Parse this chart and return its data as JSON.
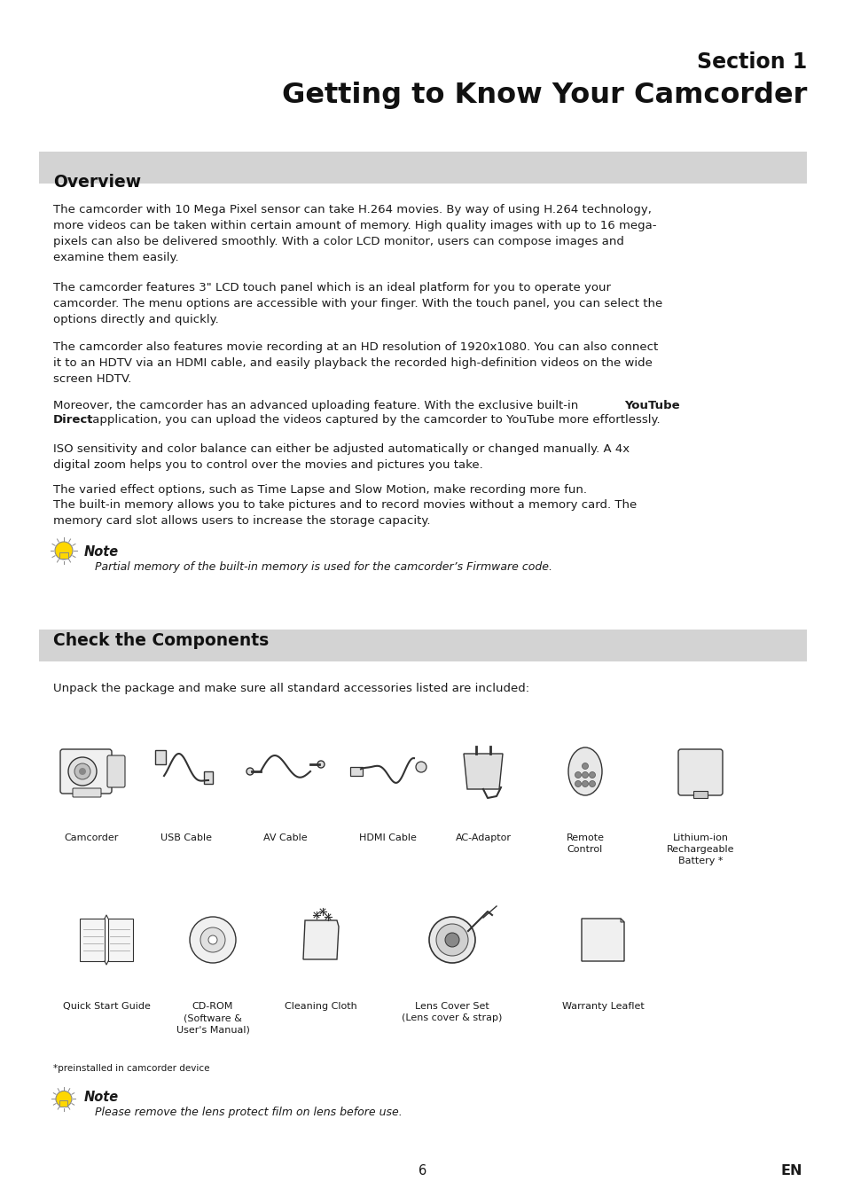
{
  "bg_color": "#ffffff",
  "section_title_line1": "Section 1",
  "section_title_line2": "Getting to Know Your Camcorder",
  "overview_header": "Overview",
  "para1": "The camcorder with 10 Mega Pixel sensor can take H.264 movies. By way of using H.264 technology,\nmore videos can be taken within certain amount of memory. High quality images with up to 16 mega-\npixels can also be delivered smoothly. With a color LCD monitor, users can compose images and\nexamine them easily.",
  "para2": "The camcorder features 3\" LCD touch panel which is an ideal platform for you to operate your\ncamcorder. The menu options are accessible with your finger. With the touch panel, you can select the\noptions directly and quickly.",
  "para3": "The camcorder also features movie recording at an HD resolution of 1920x1080. You can also connect\nit to an HDTV via an HDMI cable, and easily playback the recorded high-definition videos on the wide\nscreen HDTV.",
  "para4a": "Moreover, the camcorder has an advanced uploading feature. With the exclusive built-in ",
  "para4b": "YouTube",
  "para4c": "\nDirect",
  "para4d": " application, you can upload the videos captured by the camcorder to YouTube more effortlessly.",
  "para5": "ISO sensitivity and color balance can either be adjusted automatically or changed manually. A 4x\ndigital zoom helps you to control over the movies and pictures you take.",
  "para6": "The varied effect options, such as Time Lapse and Slow Motion, make recording more fun.",
  "para7": "The built-in memory allows you to take pictures and to record movies without a memory card. The\nmemory card slot allows users to increase the storage capacity.",
  "note1_bold": "Note",
  "note1_italic": "Partial memory of the built-in memory is used for the camcorder’s Firmware code.",
  "check_header": "Check the Components",
  "unpack_text": "Unpack the package and make sure all standard accessories listed are included:",
  "labels_row1": [
    "Camcorder",
    "USB Cable",
    "AV Cable",
    "HDMI Cable",
    "AC-Adaptor",
    "Remote\nControl",
    "Lithium-ion\nRechargeable\nBattery *"
  ],
  "labels_row2": [
    "Quick Start Guide",
    "CD-ROM\n(Software &\nUser's Manual)",
    "Cleaning Cloth",
    "Lens Cover Set\n(Lens cover & strap)",
    "Warranty Leaflet"
  ],
  "preinstalled_note": "*preinstalled in camcorder device",
  "note2_bold": "Note",
  "note2_italic": "Please remove the lens protect film on lens before use.",
  "page_number": "6",
  "en_label": "EN",
  "header_bg": "#d3d3d3",
  "body_color": "#1a1a1a",
  "body_fs": 9.5,
  "header_fs": 13.5,
  "section_fs1": 17,
  "section_fs2": 23
}
